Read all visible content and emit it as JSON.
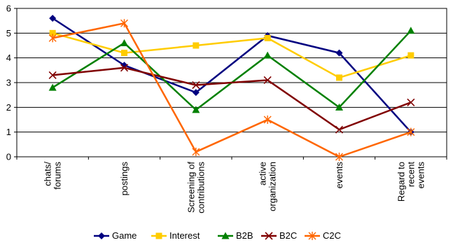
{
  "chart_data": {
    "type": "line",
    "categories": [
      [
        "chats/",
        "forums"
      ],
      [
        "postings"
      ],
      [
        "Screening of",
        "contributions"
      ],
      [
        "active",
        "organization"
      ],
      [
        "events"
      ],
      [
        "Regard to",
        "recent",
        "events"
      ]
    ],
    "ylim": [
      0,
      6
    ],
    "yticks": [
      "0",
      "1",
      "2",
      "3",
      "4",
      "5",
      "6"
    ],
    "grid": true,
    "legend_position": "bottom",
    "series": [
      {
        "name": "Game",
        "color": "#000080",
        "marker": "diamond",
        "values": [
          5.6,
          3.7,
          2.6,
          4.9,
          4.2,
          1.0
        ]
      },
      {
        "name": "Interest",
        "color": "#FFCC00",
        "marker": "square",
        "values": [
          5.0,
          4.2,
          4.5,
          4.8,
          3.2,
          4.1
        ]
      },
      {
        "name": "B2B",
        "color": "#008000",
        "marker": "triangle",
        "values": [
          2.8,
          4.6,
          1.9,
          4.1,
          2.0,
          5.1
        ]
      },
      {
        "name": "B2C",
        "color": "#800000",
        "marker": "x",
        "values": [
          3.3,
          3.6,
          2.9,
          3.1,
          1.1,
          2.2
        ]
      },
      {
        "name": "C2C",
        "color": "#FF6600",
        "marker": "star",
        "values": [
          4.8,
          5.4,
          0.2,
          1.5,
          0.0,
          1.0
        ]
      }
    ]
  }
}
